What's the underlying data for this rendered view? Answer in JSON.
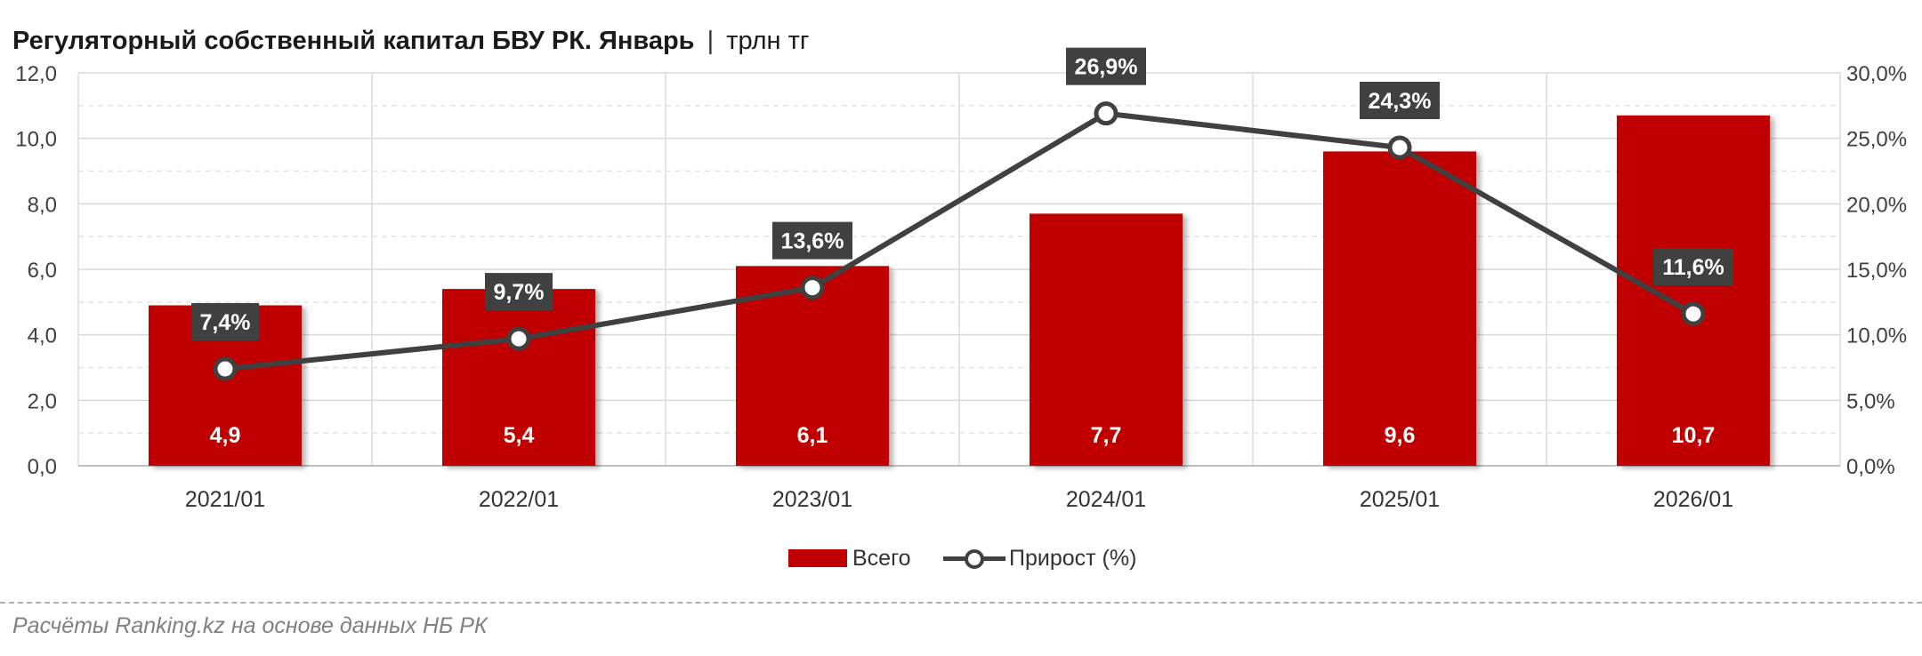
{
  "title": {
    "main": "Регуляторный собственный капитал БВУ РК. Январь",
    "separator": "|",
    "unit": "трлн тг"
  },
  "source": "Расчёты Ranking.kz на основе данных НБ РК",
  "colors": {
    "bar": "#c00000",
    "line": "#404040",
    "label_bg": "#404040",
    "grid": "#d9d9d9"
  },
  "chart_data": {
    "type": "bar",
    "categories": [
      "2021/01",
      "2022/01",
      "2023/01",
      "2024/01",
      "2025/01",
      "2026/01"
    ],
    "series": [
      {
        "name": "Всего",
        "type": "bar",
        "axis": "left",
        "values": [
          4.9,
          5.4,
          6.1,
          7.7,
          9.6,
          10.7
        ],
        "labels": [
          "4,9",
          "5,4",
          "6,1",
          "7,7",
          "9,6",
          "10,7"
        ]
      },
      {
        "name": "Прирост (%)",
        "type": "line",
        "axis": "right",
        "values": [
          7.4,
          9.7,
          13.6,
          26.9,
          24.3,
          11.6
        ],
        "labels": [
          "7,4%",
          "9,7%",
          "13,6%",
          "26,9%",
          "24,3%",
          "11,6%"
        ]
      }
    ],
    "y_left": {
      "min": 0,
      "max": 12,
      "ticks": [
        "0,0",
        "2,0",
        "4,0",
        "6,0",
        "8,0",
        "10,0",
        "12,0"
      ]
    },
    "y_right": {
      "min": 0,
      "max": 30,
      "ticks": [
        "0,0%",
        "5,0%",
        "10,0%",
        "15,0%",
        "20,0%",
        "25,0%",
        "30,0%"
      ]
    },
    "grid": true,
    "legend_position": "bottom"
  },
  "legend": {
    "bar_label": "Всего",
    "line_label": "Прирост (%)"
  }
}
